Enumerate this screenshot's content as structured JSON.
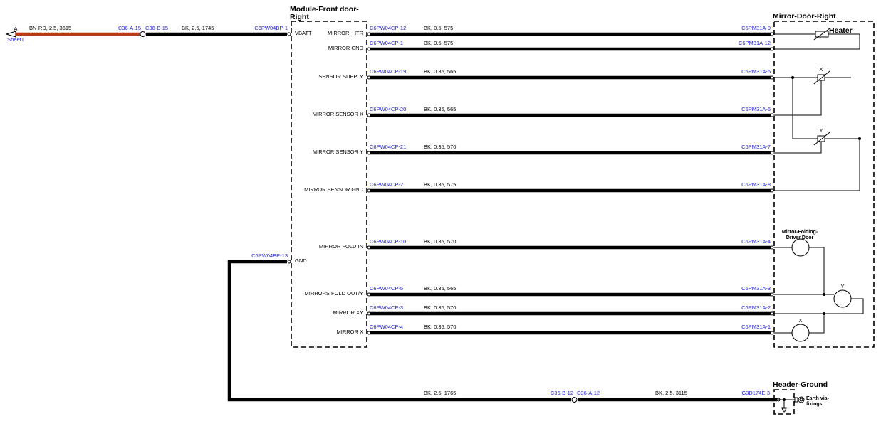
{
  "source": {
    "pin": "A",
    "sheet": "Sheet1"
  },
  "feed": {
    "spec1": "BN-RD,  2.5,  3615",
    "splice_left": "C36-A-15",
    "splice_right": "C36-B-15",
    "spec2": "BK,  2.5,  1745",
    "connector": "C6PW04BP-1",
    "pin": "VBATT"
  },
  "modules": [
    {
      "title_lines": [
        "Module-Front door-",
        "Right"
      ]
    },
    {
      "title_lines": [
        "Mirror-Door-Right"
      ]
    },
    {
      "title_lines": [
        "Header-Ground"
      ]
    }
  ],
  "wires": [
    {
      "pin": "MIRROR_HTR",
      "from": "C6PW04CP-12",
      "spec": "BK,  0.5,  575",
      "to": "C6PM31A-9"
    },
    {
      "pin": "MIRROR GND",
      "from": "C6PW04CP-1",
      "spec": "BK,  0.5,  575",
      "to": "C6PM31A-12"
    },
    {
      "pin": "SENSOR SUPPLY",
      "from": "C6PW04CP-19",
      "spec": "BK,  0.35,  565",
      "to": "C6PM31A-5"
    },
    {
      "pin": "MIRROR SENSOR X",
      "from": "C6PW04CP-20",
      "spec": "BK,  0.35,  565",
      "to": "C6PM31A-6"
    },
    {
      "pin": "MIRROR SENSOR Y",
      "from": "C6PW04CP-21",
      "spec": "BK,  0.35,  570",
      "to": "C6PM31A-7"
    },
    {
      "pin": "MIRROR SENSOR GND",
      "from": "C6PW04CP-2",
      "spec": "BK,  0.35,  575",
      "to": "C6PM31A-8"
    },
    {
      "pin": "MIRROR FOLD IN",
      "from": "C6PW04CP-10",
      "spec": "BK,  0.35,  570",
      "to": "C6PM31A-4"
    },
    {
      "pin": "MIRRORS FOLD OUT/Y",
      "from": "C6PW04CP-5",
      "spec": "BK,  0.35,  565",
      "to": "C6PM31A-3"
    },
    {
      "pin": "MIRROR XY",
      "from": "C6PW04CP-3",
      "spec": "BK,  0.35,  570",
      "to": "C6PM31A-2"
    },
    {
      "pin": "MIRROR X",
      "from": "C6PW04CP-4",
      "spec": "BK,  0.35,  570",
      "to": "C6PM31A-1"
    }
  ],
  "ground": {
    "connector": "C6PW04BP-13",
    "pin": "GND",
    "spec1": "BK,  2.5,  1765",
    "splice_left": "C36-B-12",
    "splice_right": "C36-A-12",
    "spec2": "BK,  2.5,  3115",
    "to": "G3D174E-3"
  },
  "components": {
    "heater": "Heater",
    "sensor_x": "X",
    "sensor_y": "Y",
    "fold_motor_lines": [
      "Mirror-Folding-",
      "Driver Door"
    ],
    "motor_y": "Y",
    "motor_x": "X",
    "earth_lines": [
      "Earth via-",
      "fixings"
    ]
  }
}
